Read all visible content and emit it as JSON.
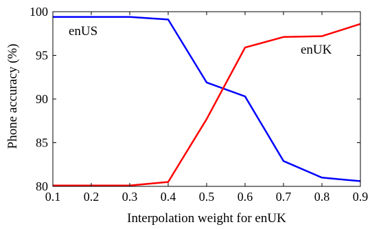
{
  "chart_data": {
    "type": "line",
    "title": "",
    "xlabel": "Interpolation weight for enUK",
    "ylabel": "Phone accuracy (%)",
    "x": [
      0.1,
      0.2,
      0.3,
      0.4,
      0.5,
      0.6,
      0.7,
      0.8,
      0.9
    ],
    "xlim": [
      0.1,
      0.9
    ],
    "ylim": [
      80,
      100
    ],
    "xticks": [
      "0.1",
      "0.2",
      "0.3",
      "0.4",
      "0.5",
      "0.6",
      "0.7",
      "0.8",
      "0.9"
    ],
    "yticks": [
      "80",
      "85",
      "90",
      "95",
      "100"
    ],
    "grid": false,
    "legend": "none",
    "series": [
      {
        "name": "enUS",
        "color": "#0000ff",
        "values": [
          99.4,
          99.4,
          99.4,
          99.1,
          91.9,
          90.3,
          82.9,
          81.0,
          80.6
        ]
      },
      {
        "name": "enUK",
        "color": "#ff0000",
        "values": [
          80.1,
          80.1,
          80.1,
          80.5,
          87.7,
          95.9,
          97.1,
          97.2,
          98.6
        ]
      }
    ]
  }
}
